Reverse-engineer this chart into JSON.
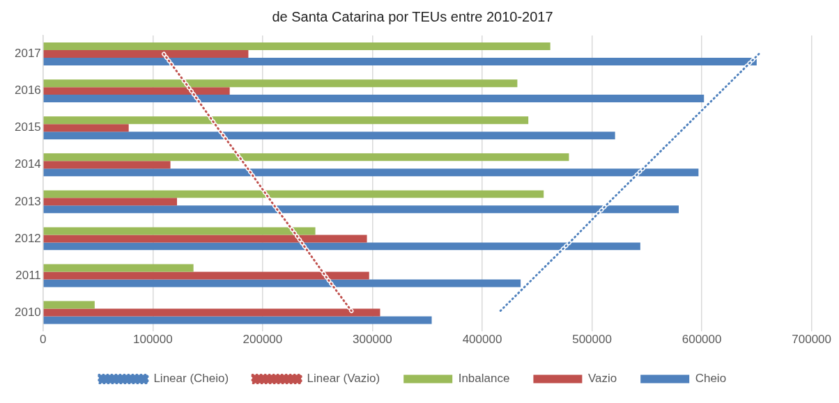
{
  "chart_data": {
    "type": "bar",
    "orientation": "horizontal",
    "title": "de Santa Catarina por TEUs entre 2010-2017",
    "categories": [
      "2017",
      "2016",
      "2015",
      "2014",
      "2013",
      "2012",
      "2011",
      "2010"
    ],
    "series": [
      {
        "name": "Inbalance",
        "color": "#9bbb59",
        "values": [
          462000,
          432000,
          442000,
          479000,
          456000,
          248000,
          137000,
          47000
        ]
      },
      {
        "name": "Vazio",
        "color": "#c0504d",
        "values": [
          187000,
          170000,
          78000,
          116000,
          122000,
          295000,
          297000,
          307000
        ]
      },
      {
        "name": "Cheio",
        "color": "#4f81bd",
        "values": [
          650000,
          602000,
          521000,
          597000,
          579000,
          544000,
          435000,
          354000
        ]
      },
      {
        "name": "Linear (Cheio)",
        "type": "line",
        "color": "#4f81bd",
        "line_style": "dotted",
        "marker": "none",
        "values": [
          652000,
          618000,
          584000,
          550000,
          516000,
          483000,
          449000,
          415000
        ]
      },
      {
        "name": "Linear (Vazio)",
        "type": "line",
        "color": "#c0504d",
        "line_style": "dotted",
        "marker": "none",
        "values": [
          110000,
          135000,
          159000,
          184000,
          208000,
          233000,
          257000,
          282000
        ]
      }
    ],
    "xlim": [
      0,
      700000
    ],
    "xticks": [
      0,
      100000,
      200000,
      300000,
      400000,
      500000,
      600000,
      700000
    ],
    "grid": "x",
    "legend": "bottom"
  }
}
